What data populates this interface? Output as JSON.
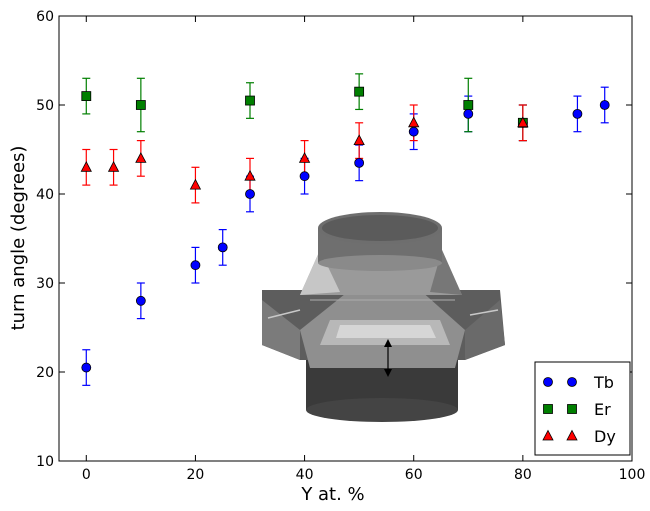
{
  "chart_data": {
    "type": "scatter",
    "xlabel": "Y at. %",
    "ylabel": "turn angle (degrees)",
    "xlim": [
      -5,
      100
    ],
    "ylim": [
      10,
      60
    ],
    "xticks": [
      0,
      20,
      40,
      60,
      80,
      100
    ],
    "yticks": [
      10,
      20,
      30,
      40,
      50,
      60
    ],
    "grid": false,
    "legend_position": "bottom-right",
    "series": [
      {
        "name": "Tb",
        "marker": "circle",
        "color": "#0000ff",
        "points": [
          {
            "x": 0,
            "y": 20.5,
            "err": 2
          },
          {
            "x": 10,
            "y": 28,
            "err": 2
          },
          {
            "x": 20,
            "y": 32,
            "err": 2
          },
          {
            "x": 25,
            "y": 34,
            "err": 2
          },
          {
            "x": 30,
            "y": 40,
            "err": 2
          },
          {
            "x": 40,
            "y": 42,
            "err": 2
          },
          {
            "x": 50,
            "y": 43.5,
            "err": 2
          },
          {
            "x": 60,
            "y": 47,
            "err": 2
          },
          {
            "x": 70,
            "y": 49,
            "err": 2
          },
          {
            "x": 80,
            "y": 48,
            "err": 2
          },
          {
            "x": 90,
            "y": 49,
            "err": 2
          },
          {
            "x": 95,
            "y": 50,
            "err": 2
          }
        ]
      },
      {
        "name": "Er",
        "marker": "square",
        "color": "#007f00",
        "points": [
          {
            "x": 0,
            "y": 51,
            "err": 2
          },
          {
            "x": 10,
            "y": 50,
            "err": 3
          },
          {
            "x": 30,
            "y": 50.5,
            "err": 2
          },
          {
            "x": 50,
            "y": 51.5,
            "err": 2
          },
          {
            "x": 70,
            "y": 50,
            "err": 3
          },
          {
            "x": 80,
            "y": 48,
            "err": 2
          }
        ]
      },
      {
        "name": "Dy",
        "marker": "triangle",
        "color": "#ff0000",
        "points": [
          {
            "x": 0,
            "y": 43,
            "err": 2
          },
          {
            "x": 5,
            "y": 43,
            "err": 2
          },
          {
            "x": 10,
            "y": 44,
            "err": 2
          },
          {
            "x": 20,
            "y": 41,
            "err": 2
          },
          {
            "x": 30,
            "y": 42,
            "err": 2
          },
          {
            "x": 40,
            "y": 44,
            "err": 2
          },
          {
            "x": 50,
            "y": 46,
            "err": 2
          },
          {
            "x": 60,
            "y": 48,
            "err": 2
          },
          {
            "x": 80,
            "y": 48,
            "err": 2
          }
        ]
      }
    ]
  }
}
